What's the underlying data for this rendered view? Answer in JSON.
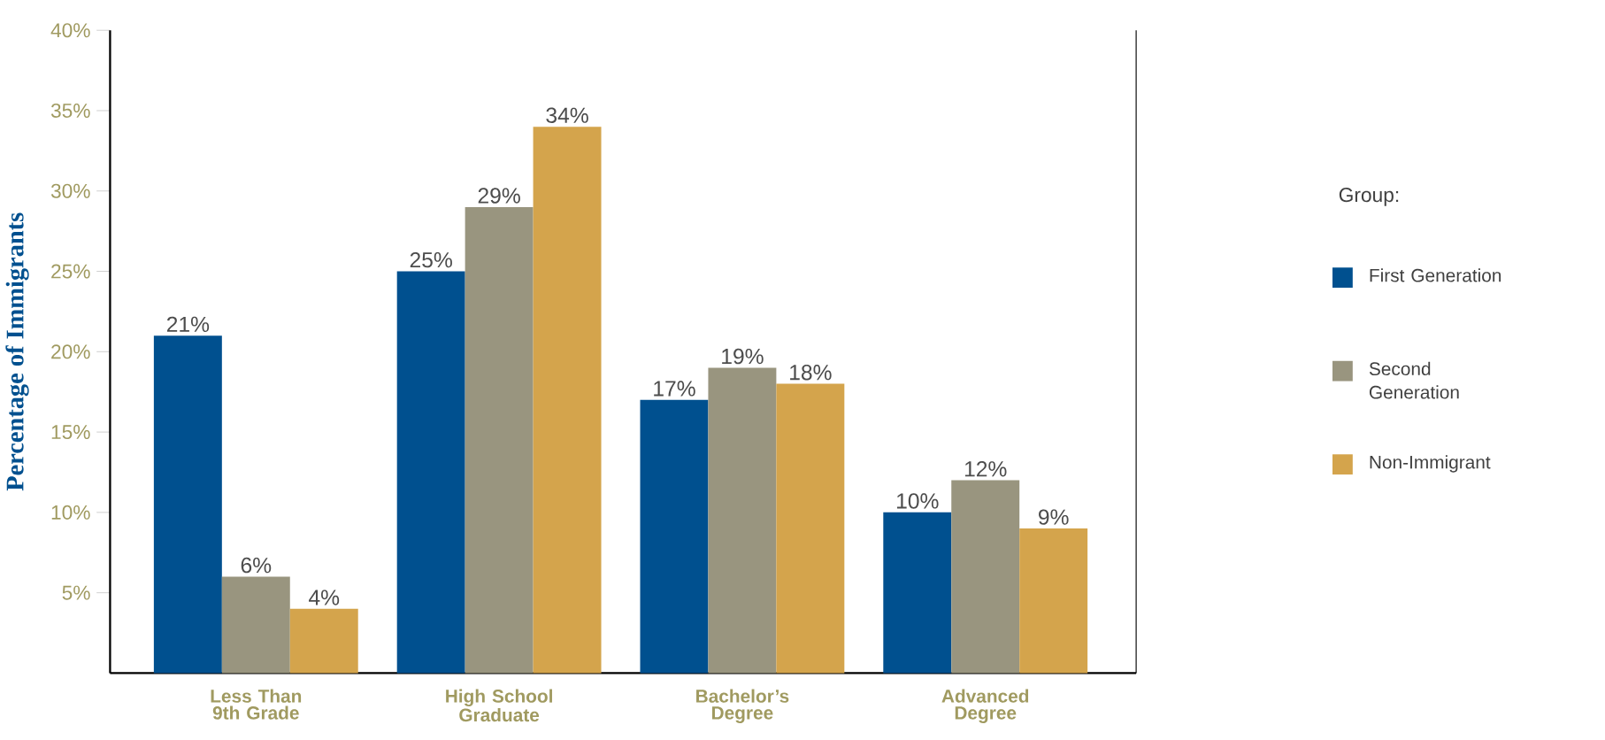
{
  "chart_data": {
    "type": "bar",
    "ylabel": "Percentage of Immigrants",
    "legend_title": "Group:",
    "legend": "right",
    "categories": [
      "Less Than 9th Grade",
      "High School Graduate",
      "Bachelor’s Degree",
      "Advanced Degree"
    ],
    "series": [
      {
        "name": "First Generation",
        "color": "#00508f",
        "values": [
          21,
          25,
          17,
          10
        ],
        "value_labels": [
          "21%",
          "25%",
          "17%",
          "10%"
        ]
      },
      {
        "name": "Second Generation",
        "color": "#99957f",
        "values": [
          6,
          29,
          19,
          12
        ],
        "value_labels": [
          "6%",
          "29%",
          "19%",
          "12%"
        ]
      },
      {
        "name": "Non-Immigrant",
        "color": "#d4a44c",
        "values": [
          4,
          34,
          18,
          9
        ],
        "value_labels": [
          "4%",
          "34%",
          "18%",
          "9%"
        ]
      }
    ],
    "ylim": [
      0,
      40
    ],
    "yticks": [
      {
        "value": 5,
        "label": "5%"
      },
      {
        "value": 10,
        "label": "10%"
      },
      {
        "value": 15,
        "label": "15%"
      },
      {
        "value": 20,
        "label": "20%"
      },
      {
        "value": 25,
        "label": "25%"
      },
      {
        "value": 30,
        "label": "30%"
      },
      {
        "value": 35,
        "label": "35%"
      },
      {
        "value": 40,
        "label": "40%"
      }
    ],
    "grid": false
  }
}
